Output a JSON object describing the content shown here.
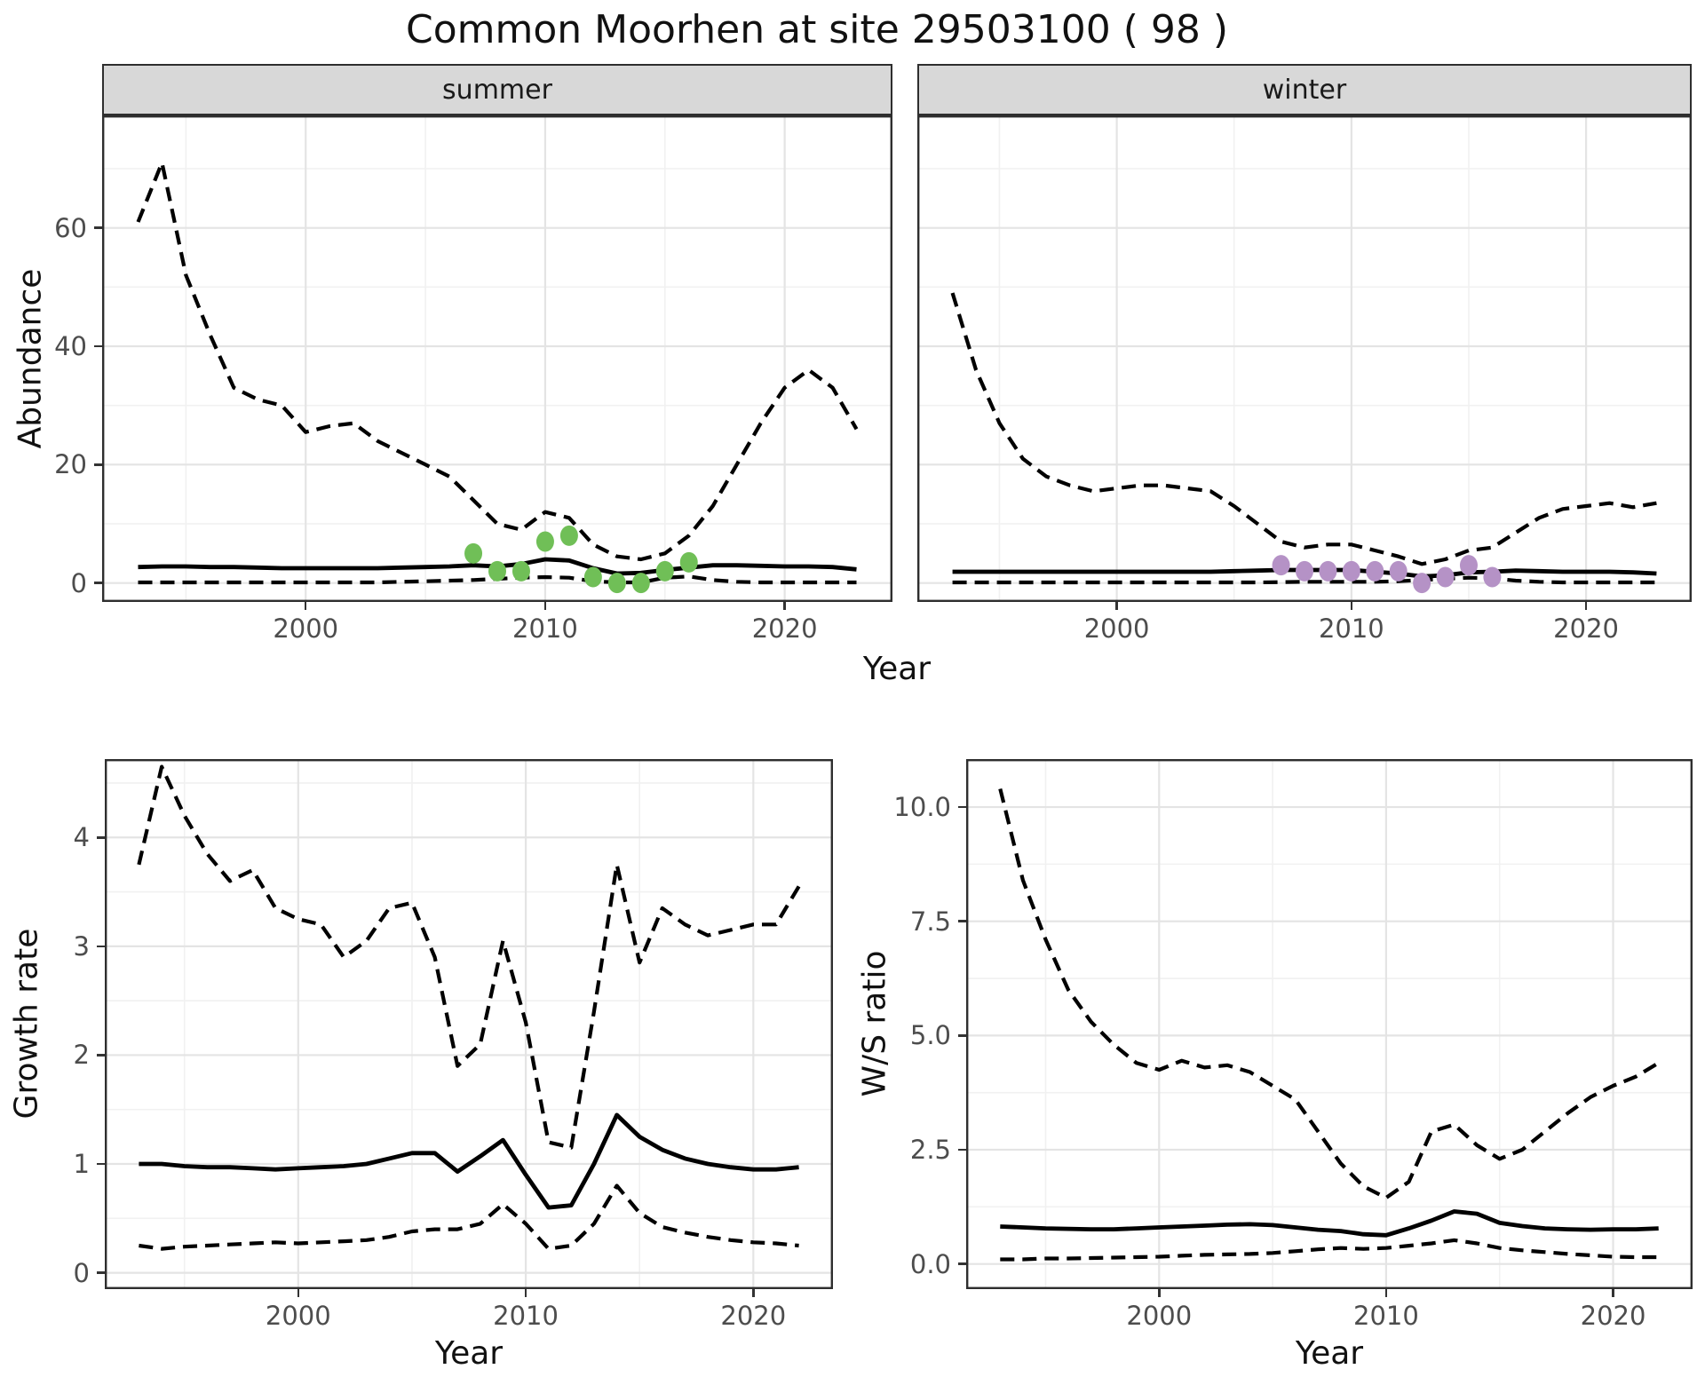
{
  "title": "Common Moorhen at site 29503100 ( 98 )",
  "facets": [
    {
      "label": "summer"
    },
    {
      "label": "winter"
    }
  ],
  "axis_titles": {
    "top_y": "Abundance",
    "top_x": "Year",
    "bottom_left_y": "Growth rate",
    "bottom_left_x": "Year",
    "bottom_right_y": "W/S ratio",
    "bottom_right_x": "Year"
  },
  "colors": {
    "summer_point": "#70bf57",
    "winter_point": "#b592c6",
    "line": "#000000",
    "grid_major": "#e4e4e4",
    "grid_minor": "#f1f1f1",
    "panel_border": "#2e2e2e",
    "strip_bg": "#d8d8d8",
    "tick_label": "#4d4d4d"
  },
  "chart_data": [
    {
      "id": "abundance_summer",
      "type": "line",
      "facet": "summer",
      "xlabel": "Year",
      "ylabel": "Abundance",
      "x_range": [
        1991.5,
        2024.5
      ],
      "y_range": [
        -3.2,
        79
      ],
      "x_ticks": [
        {
          "v": 2000,
          "label": "2000"
        },
        {
          "v": 2010,
          "label": "2010"
        },
        {
          "v": 2020,
          "label": "2020"
        }
      ],
      "x_minor": [
        1995,
        2005,
        2015
      ],
      "y_ticks": [
        {
          "v": 0,
          "label": "0"
        },
        {
          "v": 20,
          "label": "20"
        },
        {
          "v": 40,
          "label": "40"
        },
        {
          "v": 60,
          "label": "60"
        }
      ],
      "y_minor": [
        10,
        30,
        50,
        70
      ],
      "years": [
        1993,
        1994,
        1995,
        1996,
        1997,
        1998,
        1999,
        2000,
        2001,
        2002,
        2003,
        2004,
        2005,
        2006,
        2007,
        2008,
        2009,
        2010,
        2011,
        2012,
        2013,
        2014,
        2015,
        2016,
        2017,
        2018,
        2019,
        2020,
        2021,
        2022,
        2023
      ],
      "series": [
        {
          "name": "upper_95ci",
          "style": "dashed",
          "values": [
            61,
            71,
            52,
            42,
            33,
            31,
            30,
            25.5,
            26.5,
            27,
            24,
            22,
            20,
            18,
            14,
            10,
            9,
            12,
            11,
            6.5,
            4.5,
            4,
            5,
            8,
            13,
            20,
            27,
            33,
            36,
            33,
            26
          ]
        },
        {
          "name": "median",
          "style": "solid",
          "values": [
            2.7,
            2.8,
            2.8,
            2.7,
            2.7,
            2.6,
            2.5,
            2.5,
            2.5,
            2.5,
            2.5,
            2.6,
            2.7,
            2.8,
            3.0,
            2.8,
            3.2,
            4.0,
            3.8,
            2.5,
            1.6,
            1.7,
            2.2,
            2.6,
            3.0,
            3.0,
            2.9,
            2.8,
            2.8,
            2.7,
            2.3
          ]
        },
        {
          "name": "lower_95ci",
          "style": "dashed",
          "values": [
            0.1,
            0.1,
            0.1,
            0.1,
            0.1,
            0.1,
            0.1,
            0.1,
            0.1,
            0.1,
            0.1,
            0.2,
            0.3,
            0.4,
            0.5,
            0.7,
            0.9,
            1.0,
            0.9,
            0.3,
            0.1,
            0.1,
            0.9,
            1.1,
            0.5,
            0.2,
            0.1,
            0.1,
            0.1,
            0.1,
            0.1
          ]
        }
      ],
      "points": {
        "color_key": "summer_point",
        "data": [
          {
            "year": 2007,
            "value": 5
          },
          {
            "year": 2008,
            "value": 2
          },
          {
            "year": 2009,
            "value": 2
          },
          {
            "year": 2010,
            "value": 7
          },
          {
            "year": 2011,
            "value": 8
          },
          {
            "year": 2012,
            "value": 1
          },
          {
            "year": 2013,
            "value": 0
          },
          {
            "year": 2014,
            "value": 0
          },
          {
            "year": 2015,
            "value": 2
          },
          {
            "year": 2016,
            "value": 3.5
          }
        ]
      }
    },
    {
      "id": "abundance_winter",
      "type": "line",
      "facet": "winter",
      "xlabel": "Year",
      "ylabel": "Abundance",
      "x_range": [
        1991.5,
        2024.5
      ],
      "y_range": [
        -3.2,
        79
      ],
      "x_ticks": [
        {
          "v": 2000,
          "label": "2000"
        },
        {
          "v": 2010,
          "label": "2010"
        },
        {
          "v": 2020,
          "label": "2020"
        }
      ],
      "x_minor": [
        1995,
        2005,
        2015
      ],
      "y_ticks": [
        {
          "v": 0,
          "label": "0"
        },
        {
          "v": 20,
          "label": "20"
        },
        {
          "v": 40,
          "label": "40"
        },
        {
          "v": 60,
          "label": "60"
        }
      ],
      "y_minor": [
        10,
        30,
        50,
        70
      ],
      "years": [
        1993,
        1994,
        1995,
        1996,
        1997,
        1998,
        1999,
        2000,
        2001,
        2002,
        2003,
        2004,
        2005,
        2006,
        2007,
        2008,
        2009,
        2010,
        2011,
        2012,
        2013,
        2014,
        2015,
        2016,
        2017,
        2018,
        2019,
        2020,
        2021,
        2022,
        2023
      ],
      "series": [
        {
          "name": "upper_95ci",
          "style": "dashed",
          "values": [
            49,
            36,
            27,
            21,
            18,
            16.5,
            15.5,
            16,
            16.5,
            16.5,
            16,
            15.5,
            13,
            10,
            7,
            6,
            6.5,
            6.5,
            5.5,
            4.5,
            3.2,
            4,
            5.5,
            6,
            8.5,
            11,
            12.5,
            13,
            13.5,
            12.8,
            13.5
          ]
        },
        {
          "name": "median",
          "style": "solid",
          "values": [
            1.9,
            1.9,
            1.9,
            1.9,
            1.9,
            1.9,
            1.9,
            1.9,
            1.9,
            1.9,
            1.9,
            1.9,
            2.0,
            2.1,
            2.2,
            2.2,
            2.2,
            2.2,
            1.9,
            1.6,
            1.1,
            1.3,
            1.8,
            1.9,
            2.1,
            2.0,
            1.9,
            1.9,
            1.9,
            1.8,
            1.6
          ]
        },
        {
          "name": "lower_95ci",
          "style": "dashed",
          "values": [
            0.1,
            0.1,
            0.1,
            0.1,
            0.1,
            0.1,
            0.1,
            0.1,
            0.1,
            0.1,
            0.1,
            0.1,
            0.1,
            0.1,
            0.15,
            0.2,
            0.2,
            0.2,
            0.2,
            0.3,
            0.5,
            0.7,
            0.9,
            0.8,
            0.4,
            0.2,
            0.1,
            0.1,
            0.1,
            0.1,
            0.1
          ]
        }
      ],
      "points": {
        "color_key": "winter_point",
        "data": [
          {
            "year": 2007,
            "value": 3
          },
          {
            "year": 2008,
            "value": 2
          },
          {
            "year": 2009,
            "value": 2
          },
          {
            "year": 2010,
            "value": 2
          },
          {
            "year": 2011,
            "value": 2
          },
          {
            "year": 2012,
            "value": 2
          },
          {
            "year": 2013,
            "value": 0
          },
          {
            "year": 2014,
            "value": 1
          },
          {
            "year": 2015,
            "value": 3
          },
          {
            "year": 2016,
            "value": 1
          }
        ]
      }
    },
    {
      "id": "growth_rate",
      "type": "line",
      "xlabel": "Year",
      "ylabel": "Growth rate",
      "x_range": [
        1991.5,
        2023.5
      ],
      "y_range": [
        -0.15,
        4.72
      ],
      "x_ticks": [
        {
          "v": 2000,
          "label": "2000"
        },
        {
          "v": 2010,
          "label": "2010"
        },
        {
          "v": 2020,
          "label": "2020"
        }
      ],
      "x_minor": [
        1995,
        2005,
        2015
      ],
      "y_ticks": [
        {
          "v": 0,
          "label": "0"
        },
        {
          "v": 1,
          "label": "1"
        },
        {
          "v": 2,
          "label": "2"
        },
        {
          "v": 3,
          "label": "3"
        },
        {
          "v": 4,
          "label": "4"
        }
      ],
      "y_minor": [
        0.5,
        1.5,
        2.5,
        3.5,
        4.5
      ],
      "years": [
        1993,
        1994,
        1995,
        1996,
        1997,
        1998,
        1999,
        2000,
        2001,
        2002,
        2003,
        2004,
        2005,
        2006,
        2007,
        2008,
        2009,
        2010,
        2011,
        2012,
        2013,
        2014,
        2015,
        2016,
        2017,
        2018,
        2019,
        2020,
        2021,
        2022
      ],
      "series": [
        {
          "name": "upper_95ci",
          "style": "dashed",
          "values": [
            3.75,
            4.65,
            4.2,
            3.85,
            3.6,
            3.7,
            3.35,
            3.25,
            3.2,
            2.9,
            3.05,
            3.35,
            3.4,
            2.9,
            1.9,
            2.1,
            3.05,
            2.3,
            1.2,
            1.15,
            2.4,
            3.75,
            2.85,
            3.35,
            3.2,
            3.1,
            3.15,
            3.2,
            3.2,
            3.55
          ]
        },
        {
          "name": "median",
          "style": "solid",
          "values": [
            1.0,
            1.0,
            0.98,
            0.97,
            0.97,
            0.96,
            0.95,
            0.96,
            0.97,
            0.98,
            1.0,
            1.05,
            1.1,
            1.1,
            0.93,
            1.07,
            1.22,
            0.9,
            0.6,
            0.62,
            1.0,
            1.45,
            1.25,
            1.13,
            1.05,
            1.0,
            0.97,
            0.95,
            0.95,
            0.97
          ]
        },
        {
          "name": "lower_95ci",
          "style": "dashed",
          "values": [
            0.25,
            0.22,
            0.24,
            0.25,
            0.26,
            0.27,
            0.28,
            0.27,
            0.28,
            0.29,
            0.3,
            0.33,
            0.38,
            0.4,
            0.4,
            0.45,
            0.63,
            0.45,
            0.22,
            0.25,
            0.45,
            0.8,
            0.55,
            0.42,
            0.37,
            0.33,
            0.3,
            0.28,
            0.27,
            0.25
          ]
        }
      ]
    },
    {
      "id": "ws_ratio",
      "type": "line",
      "xlabel": "Year",
      "ylabel": "W/S ratio",
      "x_range": [
        1991.5,
        2023.5
      ],
      "y_range": [
        -0.55,
        11.05
      ],
      "x_ticks": [
        {
          "v": 2000,
          "label": "2000"
        },
        {
          "v": 2010,
          "label": "2010"
        },
        {
          "v": 2020,
          "label": "2020"
        }
      ],
      "x_minor": [
        1995,
        2005,
        2015
      ],
      "y_ticks": [
        {
          "v": 0,
          "label": "0.0"
        },
        {
          "v": 2.5,
          "label": "2.5"
        },
        {
          "v": 5,
          "label": "5.0"
        },
        {
          "v": 7.5,
          "label": "7.5"
        },
        {
          "v": 10,
          "label": "10.0"
        }
      ],
      "y_minor": [
        1.25,
        3.75,
        6.25,
        8.75
      ],
      "years": [
        1993,
        1994,
        1995,
        1996,
        1997,
        1998,
        1999,
        2000,
        2001,
        2002,
        2003,
        2004,
        2005,
        2006,
        2007,
        2008,
        2009,
        2010,
        2011,
        2012,
        2013,
        2014,
        2015,
        2016,
        2017,
        2018,
        2019,
        2020,
        2021,
        2022
      ],
      "series": [
        {
          "name": "upper_95ci",
          "style": "dashed",
          "values": [
            10.4,
            8.4,
            7.1,
            6.0,
            5.3,
            4.8,
            4.4,
            4.25,
            4.45,
            4.3,
            4.35,
            4.2,
            3.9,
            3.6,
            2.9,
            2.2,
            1.7,
            1.45,
            1.8,
            2.9,
            3.05,
            2.6,
            2.3,
            2.5,
            2.9,
            3.3,
            3.65,
            3.9,
            4.1,
            4.4
          ]
        },
        {
          "name": "median",
          "style": "solid",
          "values": [
            0.82,
            0.8,
            0.78,
            0.77,
            0.76,
            0.76,
            0.78,
            0.8,
            0.82,
            0.84,
            0.86,
            0.87,
            0.85,
            0.8,
            0.75,
            0.72,
            0.65,
            0.63,
            0.78,
            0.95,
            1.15,
            1.1,
            0.9,
            0.83,
            0.78,
            0.76,
            0.75,
            0.76,
            0.76,
            0.78
          ]
        },
        {
          "name": "lower_95ci",
          "style": "dashed",
          "values": [
            0.1,
            0.1,
            0.12,
            0.12,
            0.13,
            0.14,
            0.15,
            0.16,
            0.18,
            0.2,
            0.21,
            0.22,
            0.24,
            0.28,
            0.32,
            0.35,
            0.33,
            0.35,
            0.4,
            0.45,
            0.52,
            0.45,
            0.35,
            0.3,
            0.26,
            0.22,
            0.19,
            0.16,
            0.15,
            0.15
          ]
        }
      ]
    }
  ]
}
